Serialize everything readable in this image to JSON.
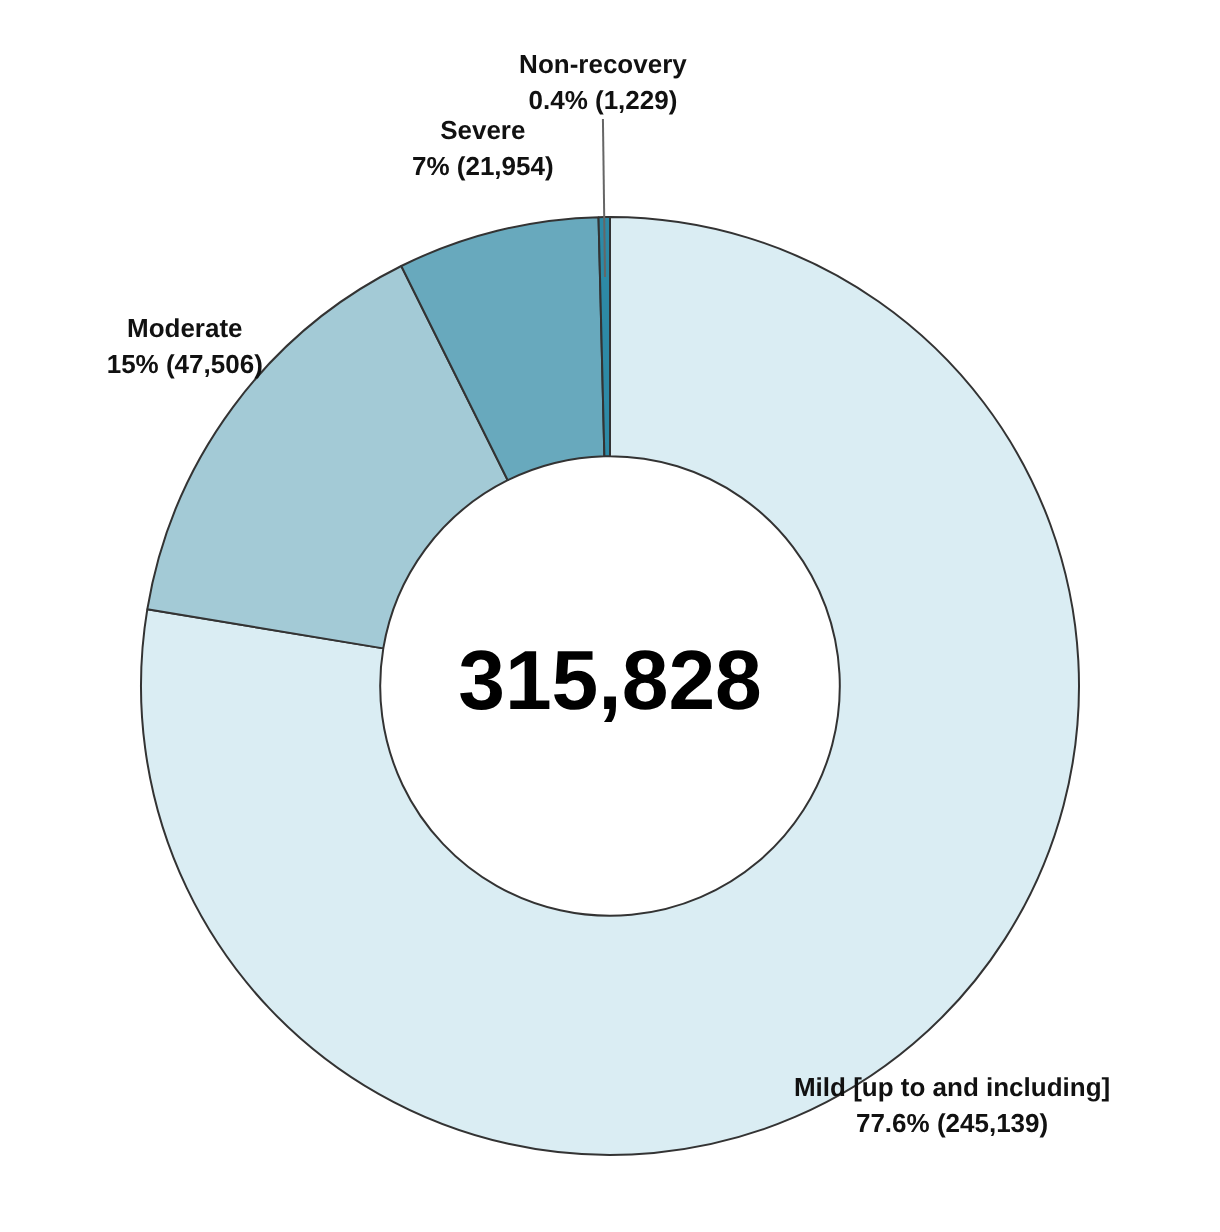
{
  "chart_data": {
    "type": "donut",
    "categories": [
      "Mild [up to and including]",
      "Moderate",
      "Severe",
      "Non-recovery"
    ],
    "values": [
      245139,
      47506,
      21954,
      1229
    ],
    "value_labels": [
      "77.6% (245,139)",
      "15% (47,506)",
      "7% (21,954)",
      "0.4% (1,229)"
    ],
    "colors": [
      "#daedf3",
      "#a3cad6",
      "#68a9bd",
      "#2d8aa6"
    ],
    "annotations": [
      "315,828"
    ],
    "legend": false
  }
}
